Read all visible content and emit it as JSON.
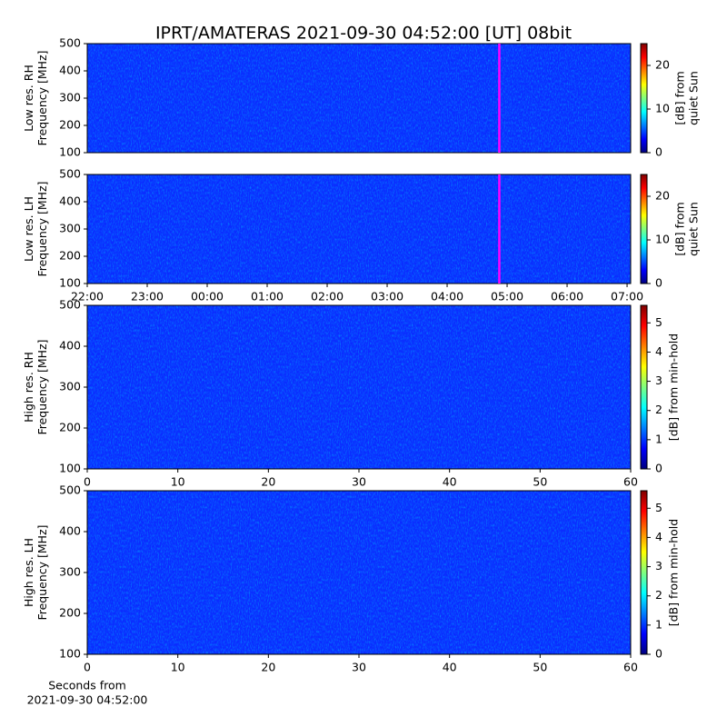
{
  "title": "IPRT/AMATERAS 2021-09-30 04:52:00 [UT]   08bit",
  "chart_data": [
    {
      "type": "spectrogram",
      "ylabel": [
        "Low res. RH",
        "Frequency [MHz]"
      ],
      "xlim": [
        0,
        9.06
      ],
      "ylim": [
        100,
        500
      ],
      "yticks": [
        100,
        200,
        300,
        400,
        500
      ],
      "colorbar": {
        "label": [
          "[dB] from",
          "quiet Sun"
        ],
        "lim": [
          0,
          25
        ],
        "ticks": [
          0,
          10,
          20
        ],
        "colormap": "jet"
      },
      "markers": [
        {
          "x": 6.87,
          "color": "#ff00ff"
        }
      ]
    },
    {
      "type": "spectrogram",
      "ylabel": [
        "Low res. LH",
        "Frequency [MHz]"
      ],
      "xlim": [
        0,
        9.06
      ],
      "ylim": [
        100,
        500
      ],
      "yticks": [
        100,
        200,
        300,
        400,
        500
      ],
      "xticks": [
        {
          "value": 0,
          "label": "22:00"
        },
        {
          "value": 1,
          "label": "23:00"
        },
        {
          "value": 2,
          "label": "00:00"
        },
        {
          "value": 3,
          "label": "01:00"
        },
        {
          "value": 4,
          "label": "02:00"
        },
        {
          "value": 5,
          "label": "03:00"
        },
        {
          "value": 6,
          "label": "04:00"
        },
        {
          "value": 7,
          "label": "05:00"
        },
        {
          "value": 8,
          "label": "06:00"
        },
        {
          "value": 9,
          "label": "07:00"
        }
      ],
      "colorbar": {
        "label": [
          "[dB] from",
          "quiet Sun"
        ],
        "lim": [
          0,
          25
        ],
        "ticks": [
          0,
          10,
          20
        ],
        "colormap": "jet"
      },
      "markers": [
        {
          "x": 6.87,
          "color": "#ff00ff"
        }
      ]
    },
    {
      "type": "spectrogram",
      "ylabel": [
        "High res. RH",
        "Frequency [MHz]"
      ],
      "xlim": [
        0,
        60
      ],
      "xticks": [
        0,
        10,
        20,
        30,
        40,
        50,
        60
      ],
      "ylim": [
        100,
        500
      ],
      "yticks": [
        100,
        200,
        300,
        400,
        500
      ],
      "colorbar": {
        "label": [
          "[dB] from min-hold"
        ],
        "lim": [
          0,
          5.6
        ],
        "ticks": [
          0,
          1,
          2,
          3,
          4,
          5
        ],
        "colormap": "jet"
      }
    },
    {
      "type": "spectrogram",
      "ylabel": [
        "High res. LH",
        "Frequency [MHz]"
      ],
      "xlim": [
        0,
        60
      ],
      "xticks": [
        0,
        10,
        20,
        30,
        40,
        50,
        60
      ],
      "ylim": [
        100,
        500
      ],
      "yticks": [
        100,
        200,
        300,
        400,
        500
      ],
      "xlabel": [
        "Seconds from",
        "2021-09-30 04:52:00"
      ],
      "colorbar": {
        "label": [
          "[dB] from min-hold"
        ],
        "lim": [
          0,
          5.6
        ],
        "ticks": [
          0,
          1,
          2,
          3,
          4,
          5
        ],
        "colormap": "jet"
      }
    }
  ]
}
